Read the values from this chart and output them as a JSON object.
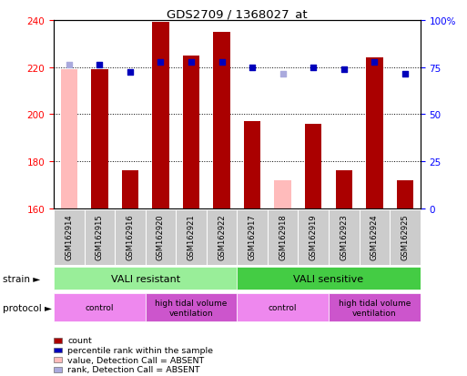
{
  "title": "GDS2709 / 1368027_at",
  "samples": [
    "GSM162914",
    "GSM162915",
    "GSM162916",
    "GSM162920",
    "GSM162921",
    "GSM162922",
    "GSM162917",
    "GSM162918",
    "GSM162919",
    "GSM162923",
    "GSM162924",
    "GSM162925"
  ],
  "count_values": [
    null,
    219,
    176,
    239,
    225,
    235,
    197,
    null,
    196,
    176,
    224,
    172
  ],
  "count_absent": [
    219,
    null,
    null,
    null,
    null,
    null,
    null,
    172,
    null,
    null,
    null,
    null
  ],
  "rank_values": [
    null,
    221,
    218,
    222,
    222,
    222,
    220,
    null,
    220,
    219,
    222,
    217
  ],
  "rank_absent": [
    221,
    null,
    null,
    null,
    null,
    null,
    null,
    217,
    null,
    null,
    null,
    null
  ],
  "ylim": [
    160,
    240
  ],
  "yticks_left": [
    160,
    180,
    200,
    220,
    240
  ],
  "yticks_right": [
    0,
    25,
    50,
    75,
    100
  ],
  "bar_color": "#aa0000",
  "bar_absent_color": "#ffbbbb",
  "dot_color": "#0000bb",
  "dot_absent_color": "#aaaadd",
  "dot_size": 25,
  "gray_cell_color": "#cccccc",
  "strain_resistant_color": "#99ee99",
  "strain_sensitive_color": "#44cc44",
  "protocol_control_color": "#ee88ee",
  "protocol_htv_color": "#cc55cc",
  "background_color": "#ffffff",
  "bar_width": 0.55,
  "strain_labels": [
    {
      "label": "VALI resistant",
      "start": 0,
      "end": 5,
      "type": "resistant"
    },
    {
      "label": "VALI sensitive",
      "start": 6,
      "end": 11,
      "type": "sensitive"
    }
  ],
  "protocol_labels": [
    {
      "label": "control",
      "start": 0,
      "end": 2,
      "type": "control"
    },
    {
      "label": "high tidal volume\nventilation",
      "start": 3,
      "end": 5,
      "type": "htv"
    },
    {
      "label": "control",
      "start": 6,
      "end": 8,
      "type": "control"
    },
    {
      "label": "high tidal volume\nventilation",
      "start": 9,
      "end": 11,
      "type": "htv"
    }
  ],
  "legend_items": [
    {
      "label": "count",
      "color": "#aa0000"
    },
    {
      "label": "percentile rank within the sample",
      "color": "#0000bb"
    },
    {
      "label": "value, Detection Call = ABSENT",
      "color": "#ffbbbb"
    },
    {
      "label": "rank, Detection Call = ABSENT",
      "color": "#aaaadd"
    }
  ]
}
